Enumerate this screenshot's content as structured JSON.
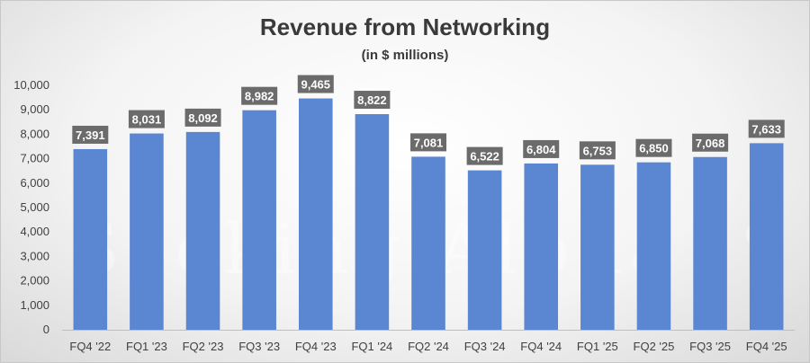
{
  "chart_data": {
    "type": "bar",
    "title": "Revenue from Networking",
    "subtitle": "(in $ millions)",
    "xlabel": "",
    "ylabel": "",
    "categories": [
      "FQ4 '22",
      "FQ1 '23",
      "FQ2 '23",
      "FQ3 '23",
      "FQ4 '23",
      "FQ1 '24",
      "FQ2 '24",
      "FQ3 '24",
      "FQ4 '24",
      "FQ1 '25",
      "FQ2 '25",
      "FQ3 '25",
      "FQ4 '25"
    ],
    "values": [
      7391,
      8031,
      8092,
      8982,
      9465,
      8822,
      7081,
      6522,
      6804,
      6753,
      6850,
      7068,
      7633
    ],
    "data_labels": [
      "7,391",
      "8,031",
      "8,092",
      "8,982",
      "9,465",
      "8,822",
      "7,081",
      "6,522",
      "6,804",
      "6,753",
      "6,850",
      "7,068",
      "7,633"
    ],
    "yticks": [
      "0",
      "1,000",
      "2,000",
      "3,000",
      "4,000",
      "5,000",
      "6,000",
      "7,000",
      "8,000",
      "9,000",
      "10,000"
    ],
    "ylim": [
      0,
      10000
    ],
    "grid": false,
    "legend": "none",
    "colors": {
      "bar": "#5b86d1",
      "label_bg": "#6b6b6b"
    }
  },
  "watermark": "Seeking Alpha",
  "watermark_mark": "α"
}
